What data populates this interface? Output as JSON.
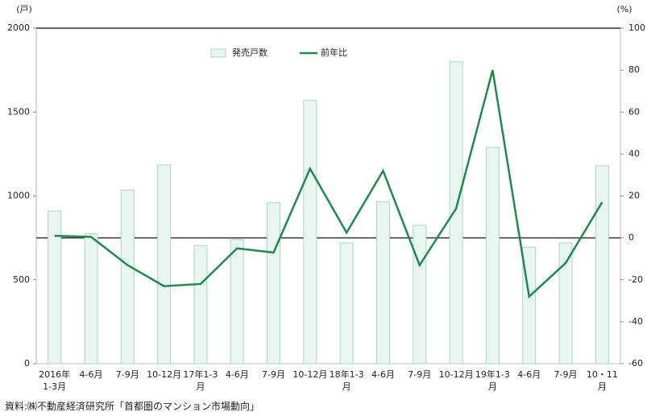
{
  "chart_data": {
    "type": "bar-line",
    "y_label": "(戸)",
    "y2_label": "(%)",
    "categories": [
      "2016年\n1-3月",
      "4-6月",
      "7-9月",
      "10-12月",
      "17年1-3\n月",
      "4-6月",
      "7-9月",
      "10-12月",
      "18年1-3\n月",
      "4-6月",
      "7-9月",
      "10-12月",
      "19年1-3\n月",
      "4-6月",
      "7-9月",
      "10・11\n月"
    ],
    "series": [
      {
        "name": "発売戸数",
        "type": "bar",
        "color": "#e9f5f1",
        "values": [
          910,
          775,
          1035,
          1185,
          705,
          740,
          960,
          1570,
          720,
          965,
          825,
          1800,
          1290,
          695,
          720,
          1180
        ]
      },
      {
        "name": "前年比",
        "type": "line",
        "axis": "y2",
        "color": "#1f8a4c",
        "values": [
          1,
          0.5,
          -13,
          -23,
          -22,
          -5,
          -7,
          33,
          2.5,
          32,
          -13,
          14,
          80,
          -28,
          -12,
          17
        ]
      }
    ],
    "ylim": [
      0,
      2000
    ],
    "yticks": [
      0,
      500,
      1000,
      1500,
      2000
    ],
    "y2lim": [
      -60,
      100
    ],
    "y2ticks": [
      -60,
      -40,
      -20,
      0,
      20,
      40,
      60,
      80,
      100
    ],
    "source": "資料:㈱不動産経済研究所「首都圏のマンション市場動向」"
  }
}
